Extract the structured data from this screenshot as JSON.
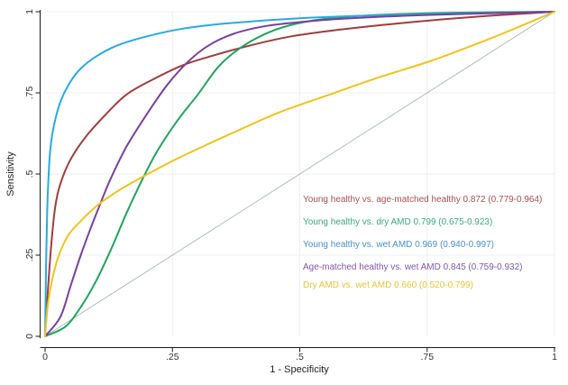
{
  "chart_data": {
    "type": "line",
    "title": "",
    "xlabel": "1 - Specificity",
    "ylabel": "Sensitivity",
    "xlim": [
      0,
      1
    ],
    "ylim": [
      0,
      1
    ],
    "background_color": "#ffffff",
    "axis_color": "#1a1a1a",
    "tick_label_color": "#2e2e2e",
    "grid": {
      "values": [
        0.25,
        0.5,
        0.75,
        1
      ],
      "color": "#f1eded",
      "on": true
    },
    "x_ticks": [
      {
        "value": 0,
        "label": "0"
      },
      {
        "value": 0.25,
        "label": ".25"
      },
      {
        "value": 0.5,
        "label": ".5"
      },
      {
        "value": 0.75,
        "label": ".75"
      },
      {
        "value": 1,
        "label": "1"
      }
    ],
    "y_ticks": [
      {
        "value": 0,
        "label": "0"
      },
      {
        "value": 0.25,
        "label": ".25"
      },
      {
        "value": 0.5,
        "label": ".5"
      },
      {
        "value": 0.75,
        "label": ".75"
      },
      {
        "value": 1,
        "label": "1"
      }
    ],
    "reference_line": {
      "name": "chance-diagonal",
      "from": [
        0,
        0
      ],
      "to": [
        1,
        1
      ],
      "color": "#a9b7b7"
    },
    "series": [
      {
        "name": "young-healthy-vs-age-matched-healthy",
        "label": "Young healthy vs. age-matched healthy",
        "auc": "0.872",
        "ci": "0.779-0.964",
        "color": "#9e3d3d",
        "x": [
          0,
          0.005,
          0.012,
          0.02,
          0.03,
          0.05,
          0.08,
          0.12,
          0.16,
          0.21,
          0.27,
          0.33,
          0.4,
          0.48,
          0.58,
          0.7,
          0.85,
          1
        ],
        "y": [
          0,
          0.13,
          0.28,
          0.4,
          0.47,
          0.545,
          0.615,
          0.685,
          0.745,
          0.79,
          0.835,
          0.865,
          0.895,
          0.923,
          0.945,
          0.965,
          0.985,
          1
        ]
      },
      {
        "name": "young-healthy-vs-dry-amd",
        "label": "Young healthy vs. dry AMD",
        "auc": "0.799",
        "ci": "0.675-0.923",
        "color": "#21a35f",
        "x": [
          0,
          0.04,
          0.07,
          0.1,
          0.13,
          0.16,
          0.19,
          0.22,
          0.26,
          0.3,
          0.34,
          0.38,
          0.43,
          0.48,
          0.55,
          0.65,
          0.8,
          1
        ],
        "y": [
          0,
          0.03,
          0.09,
          0.17,
          0.27,
          0.38,
          0.48,
          0.57,
          0.665,
          0.745,
          0.83,
          0.885,
          0.93,
          0.958,
          0.978,
          0.99,
          0.997,
          1
        ]
      },
      {
        "name": "young-healthy-vs-wet-amd",
        "label": "Young healthy vs. wet AMD",
        "auc": "0.969",
        "ci": "0.940-0.997",
        "color": "#2aa9e0",
        "x": [
          0,
          0.002,
          0.004,
          0.007,
          0.01,
          0.015,
          0.022,
          0.032,
          0.05,
          0.07,
          0.1,
          0.14,
          0.19,
          0.26,
          0.35,
          0.5,
          0.7,
          1
        ],
        "y": [
          0,
          0.22,
          0.38,
          0.5,
          0.57,
          0.63,
          0.68,
          0.73,
          0.785,
          0.825,
          0.862,
          0.895,
          0.92,
          0.945,
          0.963,
          0.98,
          0.991,
          1
        ]
      },
      {
        "name": "age-matched-healthy-vs-wet-amd",
        "label": "Age-matched healthy vs. wet AMD",
        "auc": "0.845",
        "ci": "0.759-0.932",
        "color": "#7a3f9e",
        "x": [
          0,
          0.03,
          0.05,
          0.07,
          0.09,
          0.11,
          0.13,
          0.16,
          0.2,
          0.24,
          0.28,
          0.32,
          0.37,
          0.43,
          0.5,
          0.6,
          0.75,
          1
        ],
        "y": [
          0,
          0.06,
          0.155,
          0.25,
          0.335,
          0.415,
          0.49,
          0.585,
          0.685,
          0.775,
          0.845,
          0.895,
          0.932,
          0.955,
          0.968,
          0.98,
          0.99,
          1
        ]
      },
      {
        "name": "dry-amd-vs-wet-amd",
        "label": "Dry AMD vs. wet AMD",
        "auc": "0.660",
        "ci": "0.520-0.799",
        "color": "#eec31e",
        "x": [
          0,
          0.005,
          0.012,
          0.025,
          0.045,
          0.07,
          0.1,
          0.14,
          0.19,
          0.25,
          0.31,
          0.38,
          0.46,
          0.55,
          0.65,
          0.76,
          0.87,
          0.94,
          1
        ],
        "y": [
          0,
          0.09,
          0.16,
          0.24,
          0.31,
          0.355,
          0.4,
          0.445,
          0.49,
          0.54,
          0.585,
          0.635,
          0.69,
          0.74,
          0.795,
          0.85,
          0.915,
          0.96,
          1
        ]
      }
    ],
    "legend": {
      "position": "inside-lower-right",
      "entries": [
        {
          "text": "Young healthy vs. age-matched healthy 0.872 (0.779-0.964)",
          "color": "#a84f4d"
        },
        {
          "text": "Young healthy vs. dry AMD 0.799 (0.675-0.923)",
          "color": "#3aa87e"
        },
        {
          "text": "Young healthy vs. wet AMD 0.969 (0.940-0.997)",
          "color": "#4b8fc6"
        },
        {
          "text": "Age-matched healthy vs. wet AMD 0.845 (0.759-0.932)",
          "color": "#7e58a8"
        },
        {
          "text": "Dry AMD vs. wet AMD 0.660 (0.520-0.799)",
          "color": "#e2c63c"
        }
      ]
    }
  }
}
